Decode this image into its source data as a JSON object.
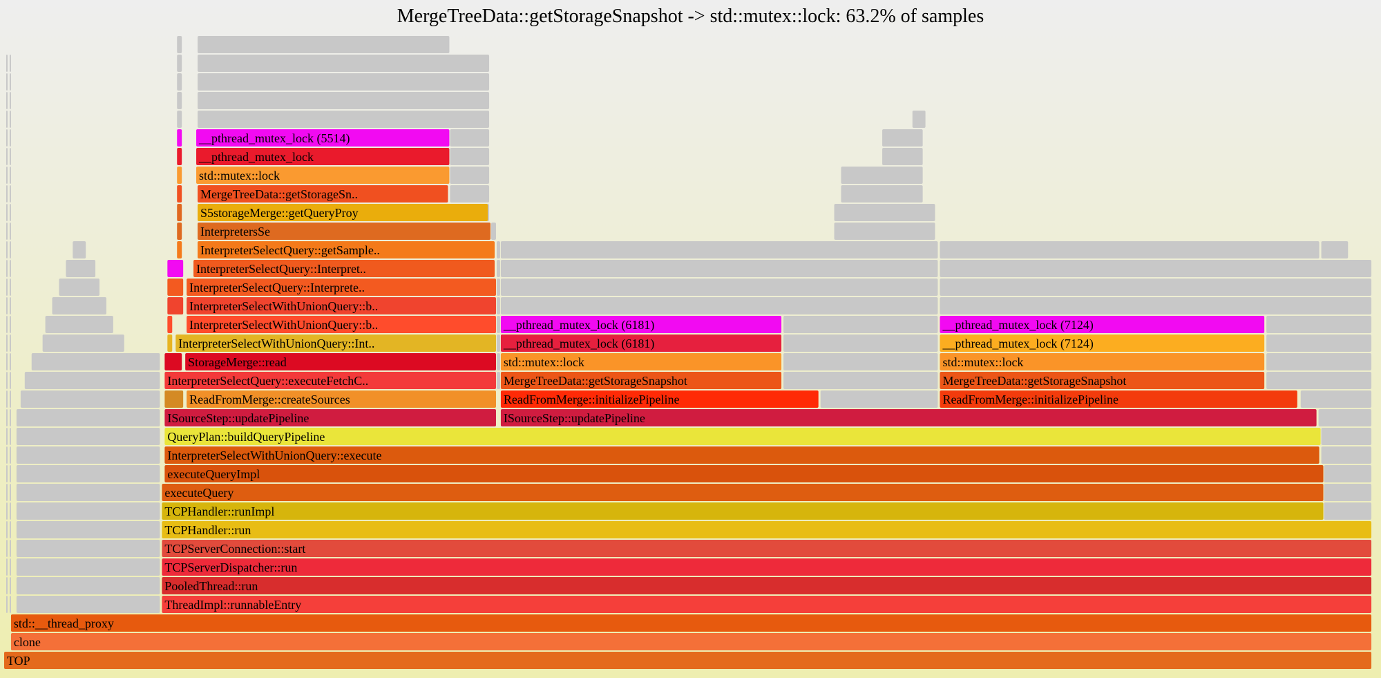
{
  "title": "MergeTreeData::getStorageSnapshot -> std::mutex::lock: 63.2% of samples",
  "chart_data": {
    "type": "flamegraph",
    "title": "MergeTreeData::getStorageSnapshot -> std::mutex::lock: 63.2% of samples",
    "x_unit": "fraction of samples",
    "frames": [
      {
        "depth": 0,
        "start": 0.0,
        "width": 0.997,
        "label": "TOP",
        "color": "#e46a1c"
      },
      {
        "depth": 1,
        "start": 0.005,
        "width": 0.992,
        "label": "clone",
        "color": "#f47038"
      },
      {
        "depth": 2,
        "start": 0.005,
        "width": 0.992,
        "label": "std::__thread_proxy",
        "color": "#e75a0e"
      },
      {
        "depth": 3,
        "start": 0.115,
        "width": 0.882,
        "label": "ThreadImpl::runnableEntry",
        "color": "#f53f3a"
      },
      {
        "depth": 4,
        "start": 0.115,
        "width": 0.882,
        "label": "PooledThread::run",
        "color": "#d82d2d"
      },
      {
        "depth": 5,
        "start": 0.115,
        "width": 0.882,
        "label": "TCPServerDispatcher::run",
        "color": "#ee2a3a"
      },
      {
        "depth": 6,
        "start": 0.115,
        "width": 0.882,
        "label": "TCPServerConnection::start",
        "color": "#e24b3c"
      },
      {
        "depth": 7,
        "start": 0.115,
        "width": 0.882,
        "label": "TCPHandler::run",
        "color": "#e8bd14"
      },
      {
        "depth": 8,
        "start": 0.115,
        "width": 0.847,
        "label": "TCPHandler::runImpl",
        "color": "#d6b50c"
      },
      {
        "depth": 9,
        "start": 0.115,
        "width": 0.847,
        "label": "executeQuery",
        "color": "#de5d10"
      },
      {
        "depth": 10,
        "start": 0.117,
        "width": 0.845,
        "label": "executeQueryImpl",
        "color": "#d9520c"
      },
      {
        "depth": 11,
        "start": 0.117,
        "width": 0.842,
        "label": "InterpreterSelectWithUnionQuery::execute",
        "color": "#dc5a0d"
      },
      {
        "depth": 12,
        "start": 0.117,
        "width": 0.843,
        "label": "QueryPlan::buildQueryPipeline",
        "color": "#eae53a"
      },
      {
        "depth": 13,
        "start": 0.117,
        "width": 0.242,
        "label": "ISourceStep::updatePipeline",
        "color": "#d01c40"
      },
      {
        "depth": 13,
        "start": 0.362,
        "width": 0.595,
        "label": "ISourceStep::updatePipeline",
        "color": "#d01c40"
      },
      {
        "depth": 14,
        "start": 0.117,
        "width": 0.014,
        "label": "",
        "color": "#d48a24"
      },
      {
        "depth": 14,
        "start": 0.133,
        "width": 0.226,
        "label": "ReadFromMerge::createSources",
        "color": "#f19028"
      },
      {
        "depth": 14,
        "start": 0.362,
        "width": 0.232,
        "label": "ReadFromMerge::initializePipeline",
        "color": "#ff2a06"
      },
      {
        "depth": 14,
        "start": 0.682,
        "width": 0.261,
        "label": "ReadFromMerge::initializePipeline",
        "color": "#f33b0c"
      },
      {
        "depth": 15,
        "start": 0.117,
        "width": 0.242,
        "label": "InterpreterSelectQuery::executeFetchC..",
        "color": "#f33a3a"
      },
      {
        "depth": 15,
        "start": 0.362,
        "width": 0.205,
        "label": "MergeTreeData::getStorageSnapshot",
        "color": "#ec5618"
      },
      {
        "depth": 15,
        "start": 0.682,
        "width": 0.237,
        "label": "MergeTreeData::getStorageSnapshot",
        "color": "#ec5618"
      },
      {
        "depth": 16,
        "start": 0.117,
        "width": 0.013,
        "label": "",
        "color": "#dc0a22"
      },
      {
        "depth": 16,
        "start": 0.132,
        "width": 0.227,
        "label": "StorageMerge::read",
        "color": "#dc0a22"
      },
      {
        "depth": 16,
        "start": 0.362,
        "width": 0.205,
        "label": "std::mutex::lock",
        "color": "#fa9428"
      },
      {
        "depth": 16,
        "start": 0.682,
        "width": 0.237,
        "label": "std::mutex::lock",
        "color": "#fa9428"
      },
      {
        "depth": 17,
        "start": 0.119,
        "width": 0.004,
        "label": "",
        "color": "#e7b422"
      },
      {
        "depth": 17,
        "start": 0.125,
        "width": 0.234,
        "label": "InterpreterSelectWithUnionQuery::Int..",
        "color": "#e3b524"
      },
      {
        "depth": 17,
        "start": 0.362,
        "width": 0.205,
        "label": "__pthread_mutex_lock (6181)",
        "color": "#e6203e"
      },
      {
        "depth": 17,
        "start": 0.682,
        "width": 0.237,
        "label": "__pthread_mutex_lock (7124)",
        "color": "#fcad20"
      },
      {
        "depth": 18,
        "start": 0.119,
        "width": 0.004,
        "label": "",
        "color": "#ff4c2c"
      },
      {
        "depth": 18,
        "start": 0.133,
        "width": 0.226,
        "label": "InterpreterSelectWithUnionQuery::b..",
        "color": "#ff4c2c"
      },
      {
        "depth": 18,
        "start": 0.362,
        "width": 0.205,
        "label": "__pthread_mutex_lock (6181)",
        "color": "#f20af2"
      },
      {
        "depth": 18,
        "start": 0.682,
        "width": 0.237,
        "label": "__pthread_mutex_lock (7124)",
        "color": "#f20af2"
      },
      {
        "depth": 19,
        "start": 0.119,
        "width": 0.012,
        "label": "",
        "color": "#f0442e"
      },
      {
        "depth": 19,
        "start": 0.133,
        "width": 0.226,
        "label": "InterpreterSelectWithUnionQuery::b..",
        "color": "#f0442e"
      },
      {
        "depth": 20,
        "start": 0.119,
        "width": 0.012,
        "label": "",
        "color": "#f35a20"
      },
      {
        "depth": 20,
        "start": 0.133,
        "width": 0.226,
        "label": "InterpreterSelectQuery::Interprete..",
        "color": "#f35a20"
      },
      {
        "depth": 21,
        "start": 0.119,
        "width": 0.012,
        "label": "",
        "color": "#f20af2"
      },
      {
        "depth": 21,
        "start": 0.138,
        "width": 0.22,
        "label": "InterpreterSelectQuery::Interpret..",
        "color": "#f05a1e"
      },
      {
        "depth": 22,
        "start": 0.126,
        "width": 0.004,
        "label": "",
        "color": "#f47a1a"
      },
      {
        "depth": 22,
        "start": 0.141,
        "width": 0.217,
        "label": "InterpreterSelectQuery::getSample..",
        "color": "#f47a1a"
      },
      {
        "depth": 23,
        "start": 0.126,
        "width": 0.004,
        "label": "",
        "color": "#de6a20"
      },
      {
        "depth": 23,
        "start": 0.141,
        "width": 0.214,
        "label": "InterpretersSe",
        "color": "#de6a20"
      },
      {
        "depth": 24,
        "start": 0.126,
        "width": 0.004,
        "label": "",
        "color": "#e06820"
      },
      {
        "depth": 24,
        "start": 0.141,
        "width": 0.212,
        "label": "S5storageMerge::getQueryProy",
        "color": "#eaad0c"
      },
      {
        "depth": 25,
        "start": 0.126,
        "width": 0.004,
        "label": "",
        "color": "#f05020"
      },
      {
        "depth": 25,
        "start": 0.141,
        "width": 0.183,
        "label": "MergeTreeData::getStorageSn..",
        "color": "#f05020"
      },
      {
        "depth": 26,
        "start": 0.126,
        "width": 0.004,
        "label": "",
        "color": "#fa9a30"
      },
      {
        "depth": 26,
        "start": 0.14,
        "width": 0.185,
        "label": "std::mutex::lock",
        "color": "#fa9a30"
      },
      {
        "depth": 27,
        "start": 0.126,
        "width": 0.004,
        "label": "",
        "color": "#ea1a2c"
      },
      {
        "depth": 27,
        "start": 0.14,
        "width": 0.185,
        "label": "__pthread_mutex_lock",
        "color": "#ea1a2c"
      },
      {
        "depth": 28,
        "start": 0.126,
        "width": 0.004,
        "label": "",
        "color": "#f20af2"
      },
      {
        "depth": 28,
        "start": 0.14,
        "width": 0.185,
        "label": "__pthread_mutex_lock (5514)",
        "color": "#f20af2"
      }
    ],
    "gray_frames": [
      {
        "depth": 3,
        "start": 0.009,
        "width": 0.105
      },
      {
        "depth": 4,
        "start": 0.009,
        "width": 0.105
      },
      {
        "depth": 5,
        "start": 0.009,
        "width": 0.105
      },
      {
        "depth": 6,
        "start": 0.009,
        "width": 0.105
      },
      {
        "depth": 7,
        "start": 0.009,
        "width": 0.105
      },
      {
        "depth": 8,
        "start": 0.009,
        "width": 0.105
      },
      {
        "depth": 9,
        "start": 0.009,
        "width": 0.105
      },
      {
        "depth": 10,
        "start": 0.009,
        "width": 0.105
      },
      {
        "depth": 11,
        "start": 0.009,
        "width": 0.105
      },
      {
        "depth": 12,
        "start": 0.009,
        "width": 0.105
      },
      {
        "depth": 13,
        "start": 0.009,
        "width": 0.105
      },
      {
        "depth": 14,
        "start": 0.012,
        "width": 0.102
      },
      {
        "depth": 15,
        "start": 0.015,
        "width": 0.099
      },
      {
        "depth": 16,
        "start": 0.02,
        "width": 0.094
      },
      {
        "depth": 17,
        "start": 0.028,
        "width": 0.06
      },
      {
        "depth": 18,
        "start": 0.03,
        "width": 0.05
      },
      {
        "depth": 19,
        "start": 0.035,
        "width": 0.04
      },
      {
        "depth": 20,
        "start": 0.04,
        "width": 0.03
      },
      {
        "depth": 21,
        "start": 0.045,
        "width": 0.022
      },
      {
        "depth": 22,
        "start": 0.05,
        "width": 0.01
      },
      {
        "depth": 8,
        "start": 0.962,
        "width": 0.035
      },
      {
        "depth": 9,
        "start": 0.962,
        "width": 0.035
      },
      {
        "depth": 10,
        "start": 0.962,
        "width": 0.035
      },
      {
        "depth": 11,
        "start": 0.96,
        "width": 0.037
      },
      {
        "depth": 12,
        "start": 0.96,
        "width": 0.037
      },
      {
        "depth": 13,
        "start": 0.958,
        "width": 0.039
      },
      {
        "depth": 14,
        "start": 0.945,
        "width": 0.052
      },
      {
        "depth": 15,
        "start": 0.92,
        "width": 0.077
      },
      {
        "depth": 16,
        "start": 0.92,
        "width": 0.077
      },
      {
        "depth": 17,
        "start": 0.92,
        "width": 0.077
      },
      {
        "depth": 18,
        "start": 0.92,
        "width": 0.077
      },
      {
        "depth": 19,
        "start": 0.92,
        "width": 0.077
      },
      {
        "depth": 20,
        "start": 0.92,
        "width": 0.077
      },
      {
        "depth": 21,
        "start": 0.92,
        "width": 0.077
      },
      {
        "depth": 22,
        "start": 0.96,
        "width": 0.02
      },
      {
        "depth": 14,
        "start": 0.595,
        "width": 0.086
      },
      {
        "depth": 15,
        "start": 0.568,
        "width": 0.113
      },
      {
        "depth": 16,
        "start": 0.568,
        "width": 0.113
      },
      {
        "depth": 17,
        "start": 0.568,
        "width": 0.113
      },
      {
        "depth": 18,
        "start": 0.568,
        "width": 0.113
      },
      {
        "depth": 19,
        "start": 0.362,
        "width": 0.319
      },
      {
        "depth": 20,
        "start": 0.362,
        "width": 0.319
      },
      {
        "depth": 21,
        "start": 0.362,
        "width": 0.319
      },
      {
        "depth": 22,
        "start": 0.362,
        "width": 0.319
      },
      {
        "depth": 23,
        "start": 0.605,
        "width": 0.074
      },
      {
        "depth": 24,
        "start": 0.605,
        "width": 0.074
      },
      {
        "depth": 25,
        "start": 0.61,
        "width": 0.06
      },
      {
        "depth": 26,
        "start": 0.61,
        "width": 0.06
      },
      {
        "depth": 27,
        "start": 0.64,
        "width": 0.03
      },
      {
        "depth": 28,
        "start": 0.64,
        "width": 0.03
      },
      {
        "depth": 29,
        "start": 0.662,
        "width": 0.01
      },
      {
        "depth": 19,
        "start": 0.682,
        "width": 0.277
      },
      {
        "depth": 20,
        "start": 0.682,
        "width": 0.277
      },
      {
        "depth": 21,
        "start": 0.682,
        "width": 0.277
      },
      {
        "depth": 22,
        "start": 0.682,
        "width": 0.277
      },
      {
        "depth": 15,
        "start": 0.359,
        "width": 0.003
      },
      {
        "depth": 16,
        "start": 0.359,
        "width": 0.003
      },
      {
        "depth": 17,
        "start": 0.359,
        "width": 0.003
      },
      {
        "depth": 18,
        "start": 0.359,
        "width": 0.003
      },
      {
        "depth": 19,
        "start": 0.359,
        "width": 0.003
      },
      {
        "depth": 20,
        "start": 0.359,
        "width": 0.003
      },
      {
        "depth": 21,
        "start": 0.359,
        "width": 0.003
      },
      {
        "depth": 22,
        "start": 0.359,
        "width": 0.003
      },
      {
        "depth": 23,
        "start": 0.355,
        "width": 0.004
      },
      {
        "depth": 24,
        "start": 0.325,
        "width": 0.029
      },
      {
        "depth": 25,
        "start": 0.325,
        "width": 0.029
      },
      {
        "depth": 26,
        "start": 0.325,
        "width": 0.029
      },
      {
        "depth": 27,
        "start": 0.325,
        "width": 0.029
      },
      {
        "depth": 28,
        "start": 0.325,
        "width": 0.029
      },
      {
        "depth": 29,
        "start": 0.141,
        "width": 0.213
      },
      {
        "depth": 30,
        "start": 0.141,
        "width": 0.213
      },
      {
        "depth": 31,
        "start": 0.141,
        "width": 0.213
      },
      {
        "depth": 32,
        "start": 0.141,
        "width": 0.213
      },
      {
        "depth": 33,
        "start": 0.141,
        "width": 0.184
      },
      {
        "depth": 29,
        "start": 0.126,
        "width": 0.004
      },
      {
        "depth": 30,
        "start": 0.126,
        "width": 0.004
      },
      {
        "depth": 31,
        "start": 0.126,
        "width": 0.004
      },
      {
        "depth": 32,
        "start": 0.126,
        "width": 0.004
      },
      {
        "depth": 33,
        "start": 0.126,
        "width": 0.004
      }
    ]
  }
}
